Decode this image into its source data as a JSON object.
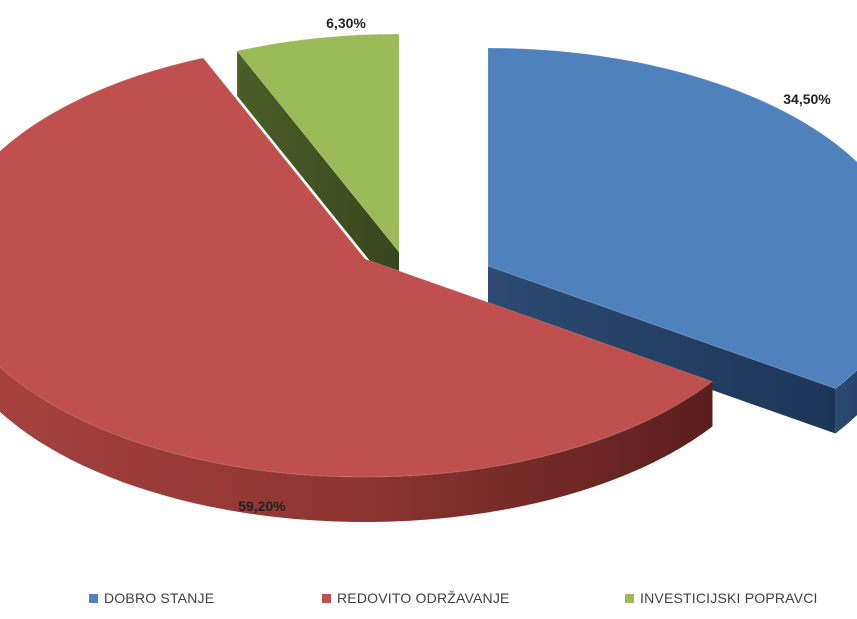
{
  "chart_data": {
    "type": "pie",
    "style": "3d-exploded",
    "slices": [
      {
        "label": "DOBRO STANJE",
        "value": 34.5,
        "display": "34,50%",
        "color": "#4F81BD"
      },
      {
        "label": "REDOVITO ODRŽAVANJE",
        "value": 59.2,
        "display": "59,20%",
        "color": "#C0504D"
      },
      {
        "label": "INVESTICIJSKI POPRAVCI",
        "value": 6.3,
        "display": "6,30%",
        "color": "#9BBB59"
      }
    ],
    "legend_position": "bottom",
    "title": ""
  }
}
